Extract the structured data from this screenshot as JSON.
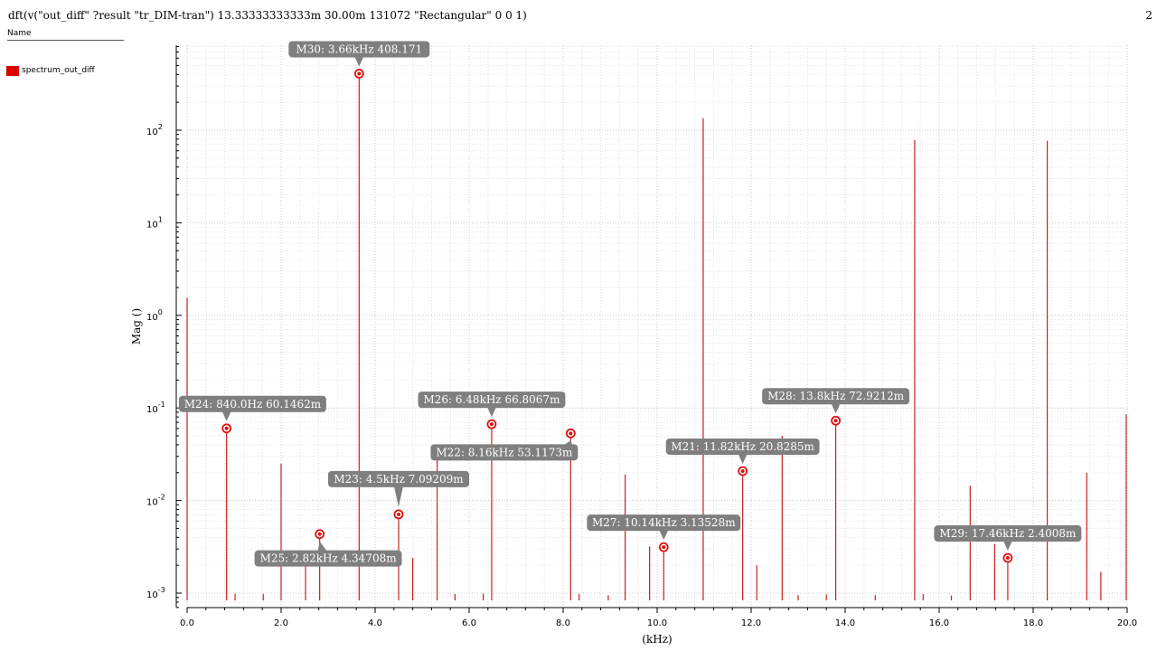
{
  "header": {
    "expression": "dft(v(\"out_diff\" ?result \"tr_DIM-tran\")  13.33333333333m 30.00m 131072 \"Rectangular\" 0 0 1)",
    "corner_number": "2"
  },
  "legend_panel": {
    "name_label": "Name",
    "items": [
      {
        "label": "spectrum_out_diff",
        "color": "#dd0000"
      }
    ]
  },
  "chart_data": {
    "type": "bar",
    "xlabel": "(kHz)",
    "ylabel": "Mag ()",
    "xlim": [
      0,
      20
    ],
    "ylim": [
      0.0008,
      800
    ],
    "y_scale": "log",
    "grid": true,
    "series_color": "#c82020",
    "x_ticks": [
      "0.0",
      "2.0",
      "4.0",
      "6.0",
      "8.0",
      "10.0",
      "12.0",
      "14.0",
      "16.0",
      "18.0",
      "20.0"
    ],
    "y_ticks": [
      {
        "base": "10",
        "exp": "-3",
        "value": 0.001
      },
      {
        "base": "10",
        "exp": "-2",
        "value": 0.01
      },
      {
        "base": "10",
        "exp": "-1",
        "value": 0.1
      },
      {
        "base": "10",
        "exp": "0",
        "value": 1
      },
      {
        "base": "10",
        "exp": "1",
        "value": 10
      },
      {
        "base": "10",
        "exp": "2",
        "value": 100
      }
    ],
    "stems": [
      {
        "x": 0.0,
        "y": 1.55
      },
      {
        "x": 0.84,
        "y": 0.0601462
      },
      {
        "x": 1.02,
        "y": 0.00099
      },
      {
        "x": 1.62,
        "y": 0.00098
      },
      {
        "x": 2.0,
        "y": 0.025
      },
      {
        "x": 2.52,
        "y": 0.0021
      },
      {
        "x": 2.82,
        "y": 0.00434708
      },
      {
        "x": 3.66,
        "y": 408.171
      },
      {
        "x": 4.5,
        "y": 0.00709209
      },
      {
        "x": 4.8,
        "y": 0.0024
      },
      {
        "x": 5.32,
        "y": 0.035
      },
      {
        "x": 5.7,
        "y": 0.00098
      },
      {
        "x": 6.3,
        "y": 0.00099
      },
      {
        "x": 6.48,
        "y": 0.0668067
      },
      {
        "x": 8.16,
        "y": 0.0531173
      },
      {
        "x": 8.34,
        "y": 0.00098
      },
      {
        "x": 8.96,
        "y": 0.00095
      },
      {
        "x": 9.32,
        "y": 0.019
      },
      {
        "x": 9.84,
        "y": 0.0032
      },
      {
        "x": 10.14,
        "y": 0.00313528
      },
      {
        "x": 10.98,
        "y": 135
      },
      {
        "x": 11.82,
        "y": 0.0208285
      },
      {
        "x": 12.12,
        "y": 0.002
      },
      {
        "x": 12.66,
        "y": 0.05
      },
      {
        "x": 13.0,
        "y": 0.00095
      },
      {
        "x": 13.6,
        "y": 0.00097
      },
      {
        "x": 13.8,
        "y": 0.0729212
      },
      {
        "x": 14.64,
        "y": 0.00095
      },
      {
        "x": 15.48,
        "y": 78
      },
      {
        "x": 15.66,
        "y": 0.00098
      },
      {
        "x": 16.26,
        "y": 0.00094
      },
      {
        "x": 16.66,
        "y": 0.0145
      },
      {
        "x": 17.18,
        "y": 0.0034
      },
      {
        "x": 17.46,
        "y": 0.0024008
      },
      {
        "x": 18.3,
        "y": 77
      },
      {
        "x": 19.14,
        "y": 0.02
      },
      {
        "x": 19.44,
        "y": 0.0017
      },
      {
        "x": 19.98,
        "y": 0.085
      }
    ],
    "markers": [
      {
        "id": "M30",
        "label": "M30: 3.66kHz 408.171",
        "x": 3.66,
        "y": 408.171,
        "placement": "above"
      },
      {
        "id": "M24",
        "label": "M24: 840.0Hz 60.1462m",
        "x": 0.84,
        "y": 0.0601462,
        "placement": "above"
      },
      {
        "id": "M26",
        "label": "M26: 6.48kHz 66.8067m",
        "x": 6.48,
        "y": 0.0668067,
        "placement": "above"
      },
      {
        "id": "M22",
        "label": "M22: 8.16kHz 53.1173m",
        "x": 8.16,
        "y": 0.0531173,
        "placement": "below-left"
      },
      {
        "id": "M28",
        "label": "M28: 13.8kHz 72.9212m",
        "x": 13.8,
        "y": 0.0729212,
        "placement": "above"
      },
      {
        "id": "M21",
        "label": "M21: 11.82kHz 20.8285m",
        "x": 11.82,
        "y": 0.0208285,
        "placement": "above"
      },
      {
        "id": "M23",
        "label": "M23: 4.5kHz 7.09209m",
        "x": 4.5,
        "y": 0.00709209,
        "placement": "above-left"
      },
      {
        "id": "M27",
        "label": "M27: 10.14kHz 3.13528m",
        "x": 10.14,
        "y": 0.00313528,
        "placement": "above"
      },
      {
        "id": "M25",
        "label": "M25: 2.82kHz 4.34708m",
        "x": 2.82,
        "y": 0.00434708,
        "placement": "below"
      },
      {
        "id": "M29",
        "label": "M29: 17.46kHz 2.4008m",
        "x": 17.46,
        "y": 0.0024008,
        "placement": "above"
      }
    ]
  }
}
